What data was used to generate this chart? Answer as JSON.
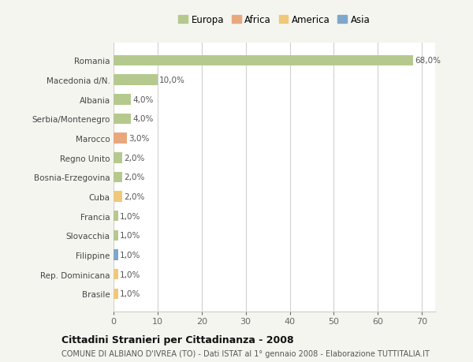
{
  "countries": [
    "Romania",
    "Macedonia d/N.",
    "Albania",
    "Serbia/Montenegro",
    "Marocco",
    "Regno Unito",
    "Bosnia-Erzegovina",
    "Cuba",
    "Francia",
    "Slovacchia",
    "Filippine",
    "Rep. Dominicana",
    "Brasile"
  ],
  "values": [
    68.0,
    10.0,
    4.0,
    4.0,
    3.0,
    2.0,
    2.0,
    2.0,
    1.0,
    1.0,
    1.0,
    1.0,
    1.0
  ],
  "labels": [
    "68,0%",
    "10,0%",
    "4,0%",
    "4,0%",
    "3,0%",
    "2,0%",
    "2,0%",
    "2,0%",
    "1,0%",
    "1,0%",
    "1,0%",
    "1,0%",
    "1,0%"
  ],
  "colors": [
    "#b5c98e",
    "#b5c98e",
    "#b5c98e",
    "#b5c98e",
    "#e8a87c",
    "#b5c98e",
    "#b5c98e",
    "#f0c87a",
    "#b5c98e",
    "#b5c98e",
    "#7ea8c9",
    "#f0c87a",
    "#f0c87a"
  ],
  "legend_labels": [
    "Europa",
    "Africa",
    "America",
    "Asia"
  ],
  "legend_colors": [
    "#b5c98e",
    "#e8a87c",
    "#f0c87a",
    "#7ea8c9"
  ],
  "title": "Cittadini Stranieri per Cittadinanza - 2008",
  "subtitle": "COMUNE DI ALBIANO D'IVREA (TO) - Dati ISTAT al 1° gennaio 2008 - Elaborazione TUTTITALIA.IT",
  "xlim": [
    0,
    73
  ],
  "xticks": [
    0,
    10,
    20,
    30,
    40,
    50,
    60,
    70
  ],
  "background_color": "#f5f5f0",
  "bar_background": "#ffffff",
  "grid_color": "#d0d0cc"
}
